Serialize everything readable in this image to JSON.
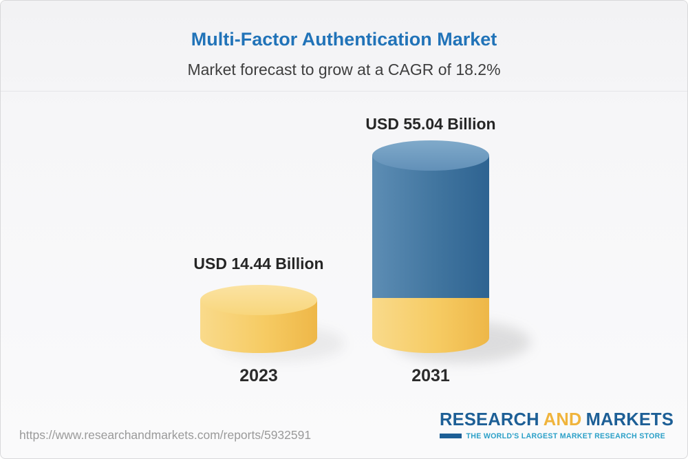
{
  "header": {
    "title": "Multi-Factor Authentication Market",
    "subtitle": "Market forecast to grow at a CAGR of 18.2%"
  },
  "chart_data": {
    "type": "bar",
    "title": "Multi-Factor Authentication Market",
    "subtitle": "Market forecast to grow at a CAGR of 18.2%",
    "categories": [
      "2023",
      "2031"
    ],
    "values": [
      14.44,
      55.04
    ],
    "value_labels": [
      "USD 14.44 Billion",
      "USD 55.04 Billion"
    ],
    "unit": "USD Billion",
    "cagr_percent": 18.2,
    "ylim": [
      0,
      60
    ],
    "grid": false,
    "legend": false,
    "style": "3d-cylinder",
    "colors": {
      "bar_2023": "#f6cb63",
      "bar_2031_segment": "#3e74a3",
      "bar_2031_base": "#f6cb63",
      "title": "#2173b8",
      "label_text": "#262626"
    },
    "notes": "2031 cylinder shows yellow base segment equal to 2023 value with blue growth segment above"
  },
  "footer": {
    "url": "https://www.researchandmarkets.com/reports/5932591",
    "logo": {
      "research": "RESEARCH",
      "and": "AND",
      "markets": "MARKETS",
      "tagline": "THE WORLD'S LARGEST MARKET RESEARCH STORE",
      "navy": "#1d5f96",
      "yellow": "#f0b43c",
      "teal": "#2ba0c8"
    }
  }
}
